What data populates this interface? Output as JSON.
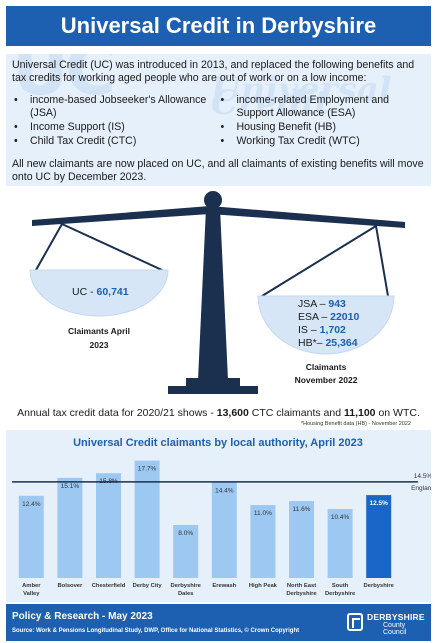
{
  "title": "Universal Credit in Derbyshire",
  "intro": {
    "watermark_text": "UC",
    "watermark_script": "Universal Credit",
    "paragraph": "Universal Credit (UC) was introduced in 2013, and replaced the following benefits and tax credits for working aged people who are out of work or on a low income:",
    "left_bullets": [
      "income-based Jobseeker's Allowance (JSA)",
      "Income Support (IS)",
      "Child Tax Credit (CTC)"
    ],
    "right_bullets": [
      "income-related Employment and Support Allowance (ESA)",
      "Housing Benefit (HB)",
      "Working Tax Credit (WTC)"
    ],
    "tail": "All new claimants are now placed on UC, and all claimants of existing benefits will move onto UC by December 2023."
  },
  "scale": {
    "left_line": "UC - ",
    "left_value": "60,741",
    "left_caption_1": "Claimants April",
    "left_caption_2": "2023",
    "right_rows": [
      {
        "label": "JSA – ",
        "value": "943"
      },
      {
        "label": "ESA – ",
        "value": "22010"
      },
      {
        "label": "IS – ",
        "value": "1,702"
      },
      {
        "label": "HB*– ",
        "value": "25,364"
      }
    ],
    "right_caption_1": "Claimants",
    "right_caption_2": "November 2022",
    "colors": {
      "dark": "#1b2f4e",
      "pan": "#d6e6f7",
      "value": "#1d5fb0"
    }
  },
  "tax_line": {
    "prefix": "Annual tax credit data for 2020/21 shows - ",
    "ctc_value": "13,600",
    "ctc_text": " CTC claimants and ",
    "wtc_value": "11,100",
    "wtc_text": " on WTC."
  },
  "housing_note": "*Housing Benefit data (HB) - November 2022",
  "chart_data": {
    "type": "bar",
    "title": "Universal Credit claimants by local authority, April 2023",
    "categories": [
      "Amber Valley",
      "Bolsover",
      "Chesterfield",
      "Derby City",
      "Derbyshire Dales",
      "Erewash",
      "High Peak",
      "North East Derbyshire",
      "South Derbyshire",
      "Derbyshire"
    ],
    "category_lines": [
      [
        "Amber",
        "Valley"
      ],
      [
        "Bolsover"
      ],
      [
        "Chesterfield"
      ],
      [
        "Derby City"
      ],
      [
        "Derbyshire",
        "Dales"
      ],
      [
        "Erewash"
      ],
      [
        "High Peak"
      ],
      [
        "North East",
        "Derbyshire"
      ],
      [
        "South",
        "Derbyshire"
      ],
      [
        "Derbyshire"
      ]
    ],
    "values": [
      12.4,
      15.1,
      15.8,
      17.7,
      8.0,
      14.4,
      11.0,
      11.6,
      10.4,
      12.5
    ],
    "value_labels": [
      "12.4%",
      "15.1%",
      "15.8%",
      "17.7%",
      "8.0%",
      "14.4%",
      "11.0%",
      "11.6%",
      "10.4%",
      "12.5%"
    ],
    "highlight_index": 9,
    "reference": {
      "name": "England",
      "value": 14.5,
      "label": "14.5%"
    },
    "ylim": [
      0,
      19
    ],
    "grid": false,
    "colors": {
      "bar": "#9cc8f2",
      "highlight": "#1866c8",
      "line": "#1b2f4e",
      "title": "#1d5fb0"
    }
  },
  "footer": {
    "line1": "Policy & Research - May 2023",
    "line2": "Source: Work & Pensions Longitudinal Study, DWP, Office for National Statistics, © Crown Copyright",
    "logo_line1": "DERBYSHIRE",
    "logo_line2": "County Council"
  }
}
